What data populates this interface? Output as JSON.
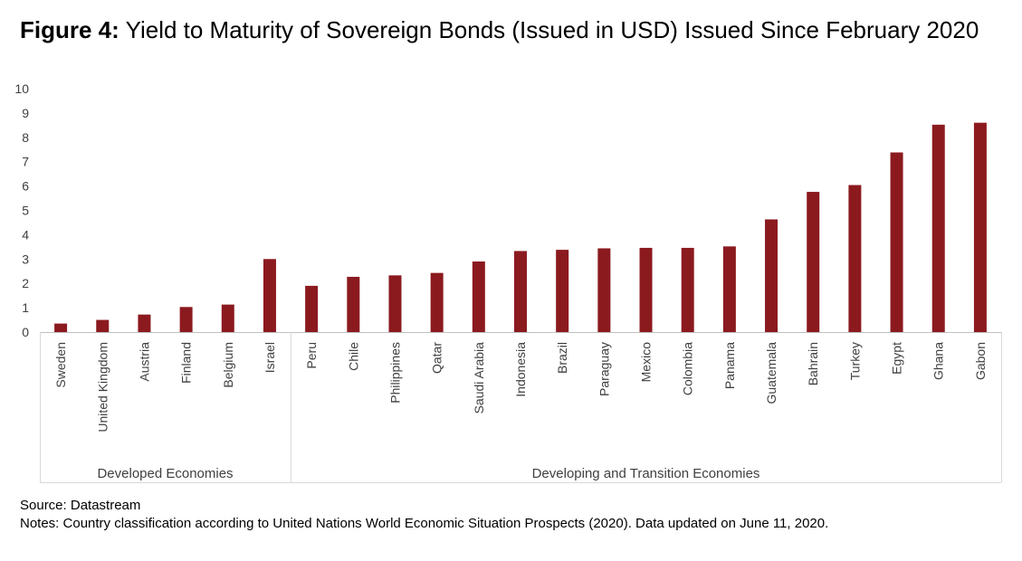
{
  "figure": {
    "label": "Figure 4",
    "separator": ":",
    "title": "Yield to Maturity of Sovereign Bonds (Issued in USD) Issued Since February 2020"
  },
  "chart_data": {
    "type": "bar",
    "categories": [
      "Sweden",
      "United Kingdom",
      "Austria",
      "Finland",
      "Belgium",
      "Israel",
      "Peru",
      "Chile",
      "Philippines",
      "Qatar",
      "Saudi Arabia",
      "Indonesia",
      "Brazil",
      "Paraguay",
      "Mexico",
      "Colombia",
      "Panama",
      "Guatemala",
      "Bahrain",
      "Turkey",
      "Egypt",
      "Ghana",
      "Gabon"
    ],
    "values": [
      0.35,
      0.5,
      0.72,
      1.03,
      1.13,
      3.0,
      1.9,
      2.27,
      2.33,
      2.43,
      2.9,
      3.33,
      3.38,
      3.44,
      3.46,
      3.46,
      3.52,
      4.63,
      5.76,
      6.04,
      7.38,
      8.52,
      8.6
    ],
    "groups": [
      {
        "label": "Developed Economies",
        "count": 6
      },
      {
        "label": "Developing and Transition Economies",
        "count": 17
      }
    ],
    "ylim": [
      0,
      10
    ],
    "yticks": [
      "0",
      "1",
      "2",
      "3",
      "4",
      "5",
      "6",
      "7",
      "8",
      "9",
      "10"
    ],
    "bar_color": "#8B1A1F",
    "grid": false
  },
  "footer": {
    "source": "Source: Datastream",
    "notes": "Notes: Country classification according to United Nations World Economic Situation Prospects (2020). Data updated on June 11, 2020."
  }
}
